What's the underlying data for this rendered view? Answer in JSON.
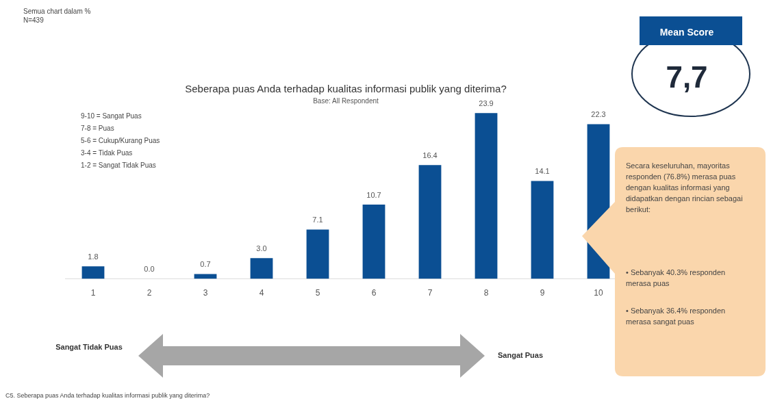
{
  "chart_data": {
    "type": "bar",
    "title": "Seberapa puas Anda terhadap kualitas informasi publik yang diterima?",
    "subtitle": "Base: All Respondent",
    "categories": [
      "1",
      "2",
      "3",
      "4",
      "5",
      "6",
      "7",
      "8",
      "9",
      "10"
    ],
    "values": [
      1.8,
      0.0,
      0.7,
      3.0,
      7.1,
      10.7,
      16.4,
      23.9,
      14.1,
      22.3
    ],
    "color": "#0b4f93",
    "value_labels": [
      "1.8",
      "0.0",
      "0.7",
      "3.0",
      "7.1",
      "10.7",
      "16.4",
      "23.9",
      "14.1",
      "22.3"
    ],
    "tick_labels": "x",
    "grid": false,
    "legend": false,
    "annotations": [
      "Semua chart dalam %",
      "N=439",
      "9-10 = Sangat Puas",
      "7-8 = Puas",
      "5-6 = Cukup/Kurang Puas",
      "3-4 = Tidak Puas",
      "1-2 = Sangat Tidak Puas",
      "Mean Score",
      "7,7",
      "Secara keseluruhan, mayoritas responden (76.8%) merasa puas dengan kualitas informasi yang didapatkan dengan rincian sebagai berikut:",
      "• Sebanyak 40.3% responden merasa puas",
      "• Sebanyak 36.4% responden merasa sangat puas",
      "Sangat Tidak Puas",
      "Sangat Puas",
      "C5. Seberapa puas Anda terhadap kualitas informasi publik yang diterima?"
    ]
  }
}
